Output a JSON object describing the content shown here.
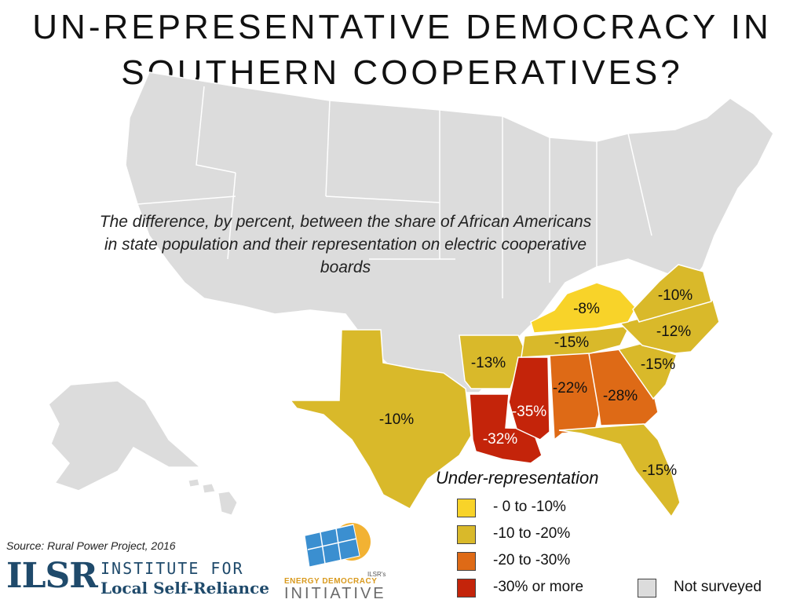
{
  "title": {
    "line1": "UN-REPRESENTATIVE DEMOCRACY IN",
    "line2": "SOUTHERN COOPERATIVES?"
  },
  "subtitle": "The difference, by percent, between the share of African Americans in state population and their representation on electric cooperative boards",
  "colors": {
    "background": "#ffffff",
    "not_surveyed": "#dcdcdc",
    "border": "#ffffff",
    "cat_0_10": "#f8d329",
    "cat_10_20": "#d9b92a",
    "cat_20_30": "#de6a16",
    "cat_30_plus": "#c4240a"
  },
  "states": [
    {
      "name": "Kentucky",
      "label": "-8%",
      "category": "cat_0_10"
    },
    {
      "name": "Virginia",
      "label": "-10%",
      "category": "cat_10_20"
    },
    {
      "name": "North Carolina",
      "label": "-12%",
      "category": "cat_10_20"
    },
    {
      "name": "Tennessee",
      "label": "-15%",
      "category": "cat_10_20"
    },
    {
      "name": "South Carolina",
      "label": "-15%",
      "category": "cat_10_20"
    },
    {
      "name": "Arkansas",
      "label": "-13%",
      "category": "cat_10_20"
    },
    {
      "name": "Texas",
      "label": "-10%",
      "category": "cat_10_20"
    },
    {
      "name": "Florida",
      "label": "-15%",
      "category": "cat_10_20"
    },
    {
      "name": "Alabama",
      "label": "-22%",
      "category": "cat_20_30"
    },
    {
      "name": "Georgia",
      "label": "-28%",
      "category": "cat_20_30"
    },
    {
      "name": "Mississippi",
      "label": "-35%",
      "category": "cat_30_plus"
    },
    {
      "name": "Louisiana",
      "label": "-32%",
      "category": "cat_30_plus"
    }
  ],
  "legend": {
    "title": "Under-representation",
    "items": [
      {
        "label": "- 0 to -10%",
        "color": "#f8d329"
      },
      {
        "label": "-10 to -20%",
        "color": "#d9b92a"
      },
      {
        "label": "-20 to -30%",
        "color": "#de6a16"
      },
      {
        "label": "-30% or more",
        "color": "#c4240a"
      }
    ],
    "not_surveyed": {
      "label": "Not surveyed",
      "color": "#dcdcdc"
    }
  },
  "source": "Source: Rural Power Project, 2016",
  "ilsr": {
    "logo": "ILSR",
    "name_line1": "INSTITUTE FOR",
    "name_line2": "Local Self-Reliance"
  },
  "edi": {
    "tag": "ILSR's",
    "line1": "ENERGY DEMOCRACY",
    "line2": "INITIATIVE"
  }
}
